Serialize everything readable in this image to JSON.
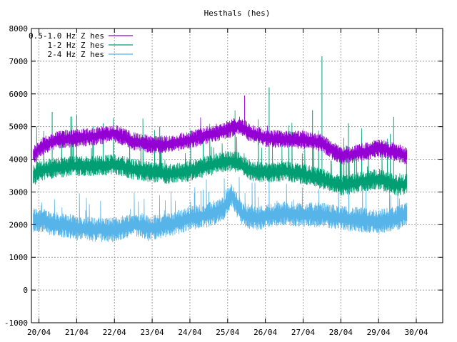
{
  "chart_data": {
    "type": "line",
    "title": "Hesthals (hes)",
    "xlabel": "",
    "ylabel": "",
    "ylim": [
      -1000,
      8000
    ],
    "yticks": [
      -1000,
      0,
      1000,
      2000,
      3000,
      4000,
      5000,
      6000,
      7000,
      8000
    ],
    "xlim": [
      -0.2,
      10.7
    ],
    "xticks": [
      {
        "label": "20/04",
        "day": 0
      },
      {
        "label": "21/04",
        "day": 1
      },
      {
        "label": "22/04",
        "day": 2
      },
      {
        "label": "23/04",
        "day": 3
      },
      {
        "label": "24/04",
        "day": 4
      },
      {
        "label": "25/04",
        "day": 5
      },
      {
        "label": "26/04",
        "day": 6
      },
      {
        "label": "27/04",
        "day": 7
      },
      {
        "label": "28/04",
        "day": 8
      },
      {
        "label": "29/04",
        "day": 9
      },
      {
        "label": "30/04",
        "day": 10
      }
    ],
    "grid": true,
    "legend_position": "top-left",
    "series": [
      {
        "name": "0.5-1.0 Hz Z hes",
        "color": "#9400d3",
        "x": [
          -0.15,
          0.0,
          0.5,
          1.0,
          1.5,
          2.0,
          2.5,
          3.0,
          3.5,
          4.0,
          4.5,
          5.0,
          5.3,
          5.6,
          6.0,
          6.5,
          7.0,
          7.5,
          8.0,
          8.5,
          9.0,
          9.5,
          9.75
        ],
        "y": [
          4100,
          4350,
          4600,
          4650,
          4700,
          4800,
          4550,
          4450,
          4450,
          4600,
          4750,
          4900,
          5050,
          4800,
          4650,
          4600,
          4600,
          4500,
          4100,
          4200,
          4350,
          4200,
          4100
        ],
        "spikes": [
          {
            "x": 5.45,
            "y": 5950
          }
        ]
      },
      {
        "name": "1-2 Hz Z hes",
        "color": "#009e73",
        "x": [
          -0.15,
          0.0,
          0.5,
          1.0,
          1.5,
          2.0,
          2.5,
          3.0,
          3.5,
          4.0,
          4.5,
          5.0,
          5.3,
          5.6,
          6.0,
          6.5,
          7.0,
          7.5,
          8.0,
          8.5,
          9.0,
          9.5,
          9.75
        ],
        "y": [
          3500,
          3650,
          3750,
          3800,
          3800,
          3850,
          3700,
          3600,
          3550,
          3650,
          3800,
          3950,
          3900,
          3650,
          3600,
          3650,
          3550,
          3400,
          3200,
          3300,
          3400,
          3200,
          3250
        ],
        "spikes": [
          {
            "x": 0.35,
            "y": 5450
          },
          {
            "x": 1.0,
            "y": 5350
          },
          {
            "x": 1.7,
            "y": 5100
          },
          {
            "x": 3.2,
            "y": 5000
          },
          {
            "x": 6.1,
            "y": 6200
          },
          {
            "x": 7.25,
            "y": 5500
          },
          {
            "x": 7.5,
            "y": 7150
          },
          {
            "x": 8.2,
            "y": 5100
          },
          {
            "x": 9.4,
            "y": 5300
          }
        ]
      },
      {
        "name": "2-4 Hz Z hes",
        "color": "#56b4e9",
        "x": [
          -0.15,
          0.0,
          0.5,
          1.0,
          1.5,
          2.0,
          2.5,
          3.0,
          3.5,
          4.0,
          4.5,
          4.9,
          5.1,
          5.4,
          5.8,
          6.0,
          6.5,
          7.0,
          7.5,
          8.0,
          8.5,
          9.0,
          9.5,
          9.75
        ],
        "y": [
          2150,
          2150,
          2000,
          1900,
          1850,
          1850,
          2000,
          1900,
          2000,
          2200,
          2300,
          2500,
          2900,
          2300,
          2200,
          2250,
          2350,
          2300,
          2300,
          2200,
          2150,
          2100,
          2200,
          2300
        ],
        "spikes": [
          {
            "x": 2.9,
            "y": 1500
          },
          {
            "x": 4.5,
            "y": 3000
          }
        ]
      }
    ]
  }
}
